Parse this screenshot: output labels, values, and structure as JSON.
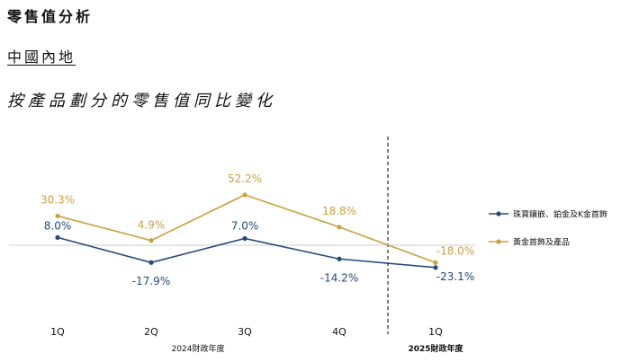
{
  "header": {
    "title": "零售值分析",
    "region": "中國內地",
    "subtitle": "按產品劃分的零售值同比變化"
  },
  "colors": {
    "series1": "#24497a",
    "series2": "#c9a23e",
    "zero_line": "#cccccc",
    "divider": "#555555"
  },
  "chart_data": {
    "type": "line",
    "categories": [
      "1Q",
      "2Q",
      "3Q",
      "4Q",
      "1Q"
    ],
    "groups": [
      {
        "label": "2024財政年度",
        "categories": [
          "1Q",
          "2Q",
          "3Q",
          "4Q"
        ]
      },
      {
        "label": "2025財政年度",
        "categories": [
          "1Q"
        ]
      }
    ],
    "series": [
      {
        "name": "珠寶鑲嵌、鉑金及K金首飾",
        "values": [
          8.0,
          -17.9,
          7.0,
          -14.2,
          -23.1
        ],
        "labels": [
          "8.0%",
          "-17.9%",
          "7.0%",
          "-14.2%",
          "-23.1%"
        ]
      },
      {
        "name": "黃金首飾及產品",
        "values": [
          30.3,
          4.9,
          52.2,
          18.8,
          -18.0
        ],
        "labels": [
          "30.3%",
          "4.9%",
          "52.2%",
          "18.8%",
          "-18.0%"
        ]
      }
    ],
    "legend_position": "right",
    "zero_line": true,
    "grid": false
  }
}
